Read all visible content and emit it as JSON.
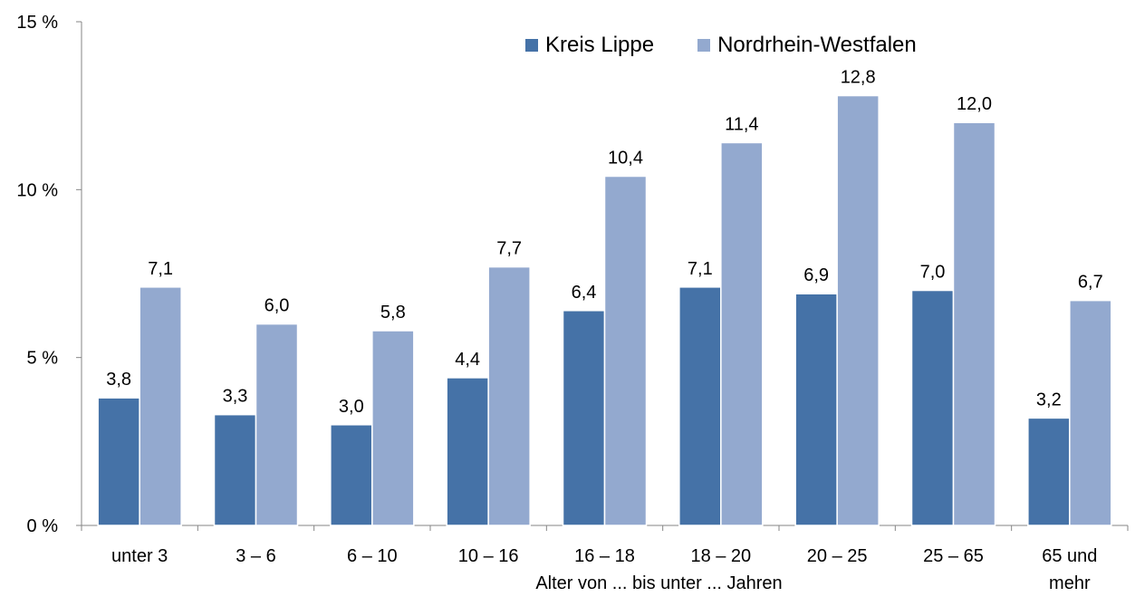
{
  "chart_data": {
    "type": "bar",
    "categories": [
      "unter 3",
      "3 –  6",
      "6 – 10",
      "10 – 16",
      "16 – 18",
      "18 – 20",
      "20 – 25",
      "25 – 65",
      "65 und mehr"
    ],
    "series": [
      {
        "name": "Kreis Lippe",
        "color": "#4572A7",
        "values": [
          3.8,
          3.3,
          3.0,
          4.4,
          6.4,
          7.1,
          6.9,
          7.0,
          3.2
        ],
        "labels": [
          "3,8",
          "3,3",
          "3,0",
          "4,4",
          "6,4",
          "7,1",
          "6,9",
          "7,0",
          "3,2"
        ]
      },
      {
        "name": "Nordrhein-Westfalen",
        "color": "#93A9CF",
        "values": [
          7.1,
          6.0,
          5.8,
          7.7,
          10.4,
          11.4,
          12.8,
          12.0,
          6.7
        ],
        "labels": [
          "7,1",
          "6,0",
          "5,8",
          "7,7",
          "10,4",
          "11,4",
          "12,8",
          "12,0",
          "6,7"
        ]
      }
    ],
    "y_ticks": [
      {
        "value": 0,
        "label": "0 %"
      },
      {
        "value": 5,
        "label": "5 %"
      },
      {
        "value": 10,
        "label": "10 %"
      },
      {
        "value": 15,
        "label": "15 %"
      }
    ],
    "ylim": [
      0,
      15
    ],
    "xlabel": "Alter von ... bis unter ... Jahren",
    "ylabel": "",
    "grid": false,
    "legend": "top-right"
  }
}
